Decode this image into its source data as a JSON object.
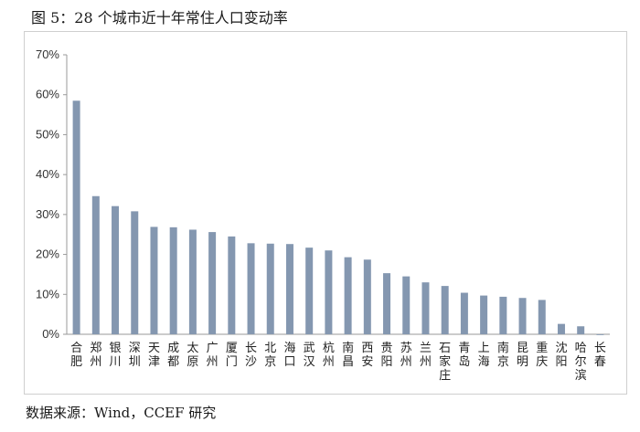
{
  "figure": {
    "title": "图 5：28 个城市近十年常住人口变动率",
    "source": "数据来源：Wind，CCEF 研究"
  },
  "colors": {
    "bar": "#8497b0",
    "axis": "#9a9a9a",
    "frame": "#cfcfcf"
  },
  "chart_data": {
    "type": "bar",
    "title": "",
    "xlabel": "",
    "ylabel": "",
    "ylim": [
      0,
      70
    ],
    "yticks": [
      "0%",
      "10%",
      "20%",
      "30%",
      "40%",
      "50%",
      "60%",
      "70%"
    ],
    "grid": false,
    "legend": "none",
    "categories": [
      "合肥",
      "郑州",
      "银川",
      "深圳",
      "天津",
      "成都",
      "太原",
      "广州",
      "厦门",
      "长沙",
      "北京",
      "海口",
      "武汉",
      "杭州",
      "南昌",
      "西安",
      "贵阳",
      "苏州",
      "兰州",
      "石家庄",
      "青岛",
      "上海",
      "南京",
      "昆明",
      "重庆",
      "沈阳",
      "哈尔滨",
      "长春"
    ],
    "values": [
      58.5,
      34.6,
      32.1,
      30.8,
      26.9,
      26.8,
      26.2,
      25.6,
      24.5,
      22.8,
      22.7,
      22.6,
      21.7,
      21.0,
      19.3,
      18.7,
      15.3,
      14.5,
      13.0,
      12.1,
      10.4,
      9.7,
      9.4,
      9.1,
      8.6,
      2.6,
      2.0,
      -0.2
    ]
  }
}
